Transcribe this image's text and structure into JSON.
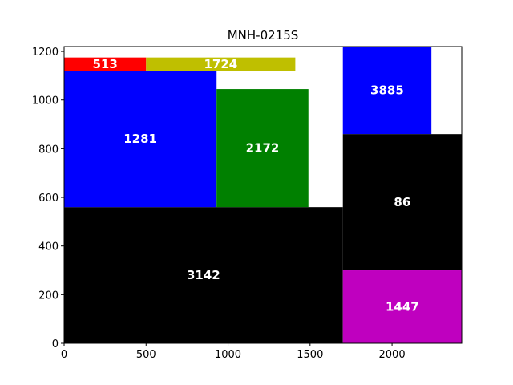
{
  "chart_data": {
    "type": "treemap",
    "title": "MNH-0215S",
    "xlabel": "",
    "ylabel": "",
    "xlim": [
      0,
      2425
    ],
    "ylim": [
      0,
      1220
    ],
    "xticks": [
      "0",
      "500",
      "1000",
      "1500",
      "2000"
    ],
    "yticks": [
      "0",
      "200",
      "400",
      "600",
      "800",
      "1000",
      "1200"
    ],
    "grid": false,
    "rectangles": [
      {
        "label": "3142",
        "x0": 0,
        "x1": 1700,
        "y0": 0,
        "y1": 560,
        "color": "#000000"
      },
      {
        "label": "1281",
        "x0": 0,
        "x1": 930,
        "y0": 560,
        "y1": 1120,
        "color": "#0000ff"
      },
      {
        "label": "2172",
        "x0": 930,
        "x1": 1490,
        "y0": 560,
        "y1": 1045,
        "color": "#008000"
      },
      {
        "label": "513",
        "x0": 0,
        "x1": 500,
        "y0": 1120,
        "y1": 1175,
        "color": "#ff0000"
      },
      {
        "label": "1724",
        "x0": 500,
        "x1": 1410,
        "y0": 1120,
        "y1": 1175,
        "color": "#bfbf00"
      },
      {
        "label": "3885",
        "x0": 1700,
        "x1": 2240,
        "y0": 860,
        "y1": 1220,
        "color": "#0000ff"
      },
      {
        "label": "86",
        "x0": 1700,
        "x1": 2425,
        "y0": 300,
        "y1": 860,
        "color": "#000000"
      },
      {
        "label": "1447",
        "x0": 1700,
        "x1": 2425,
        "y0": 0,
        "y1": 300,
        "color": "#bf00bf"
      }
    ]
  }
}
